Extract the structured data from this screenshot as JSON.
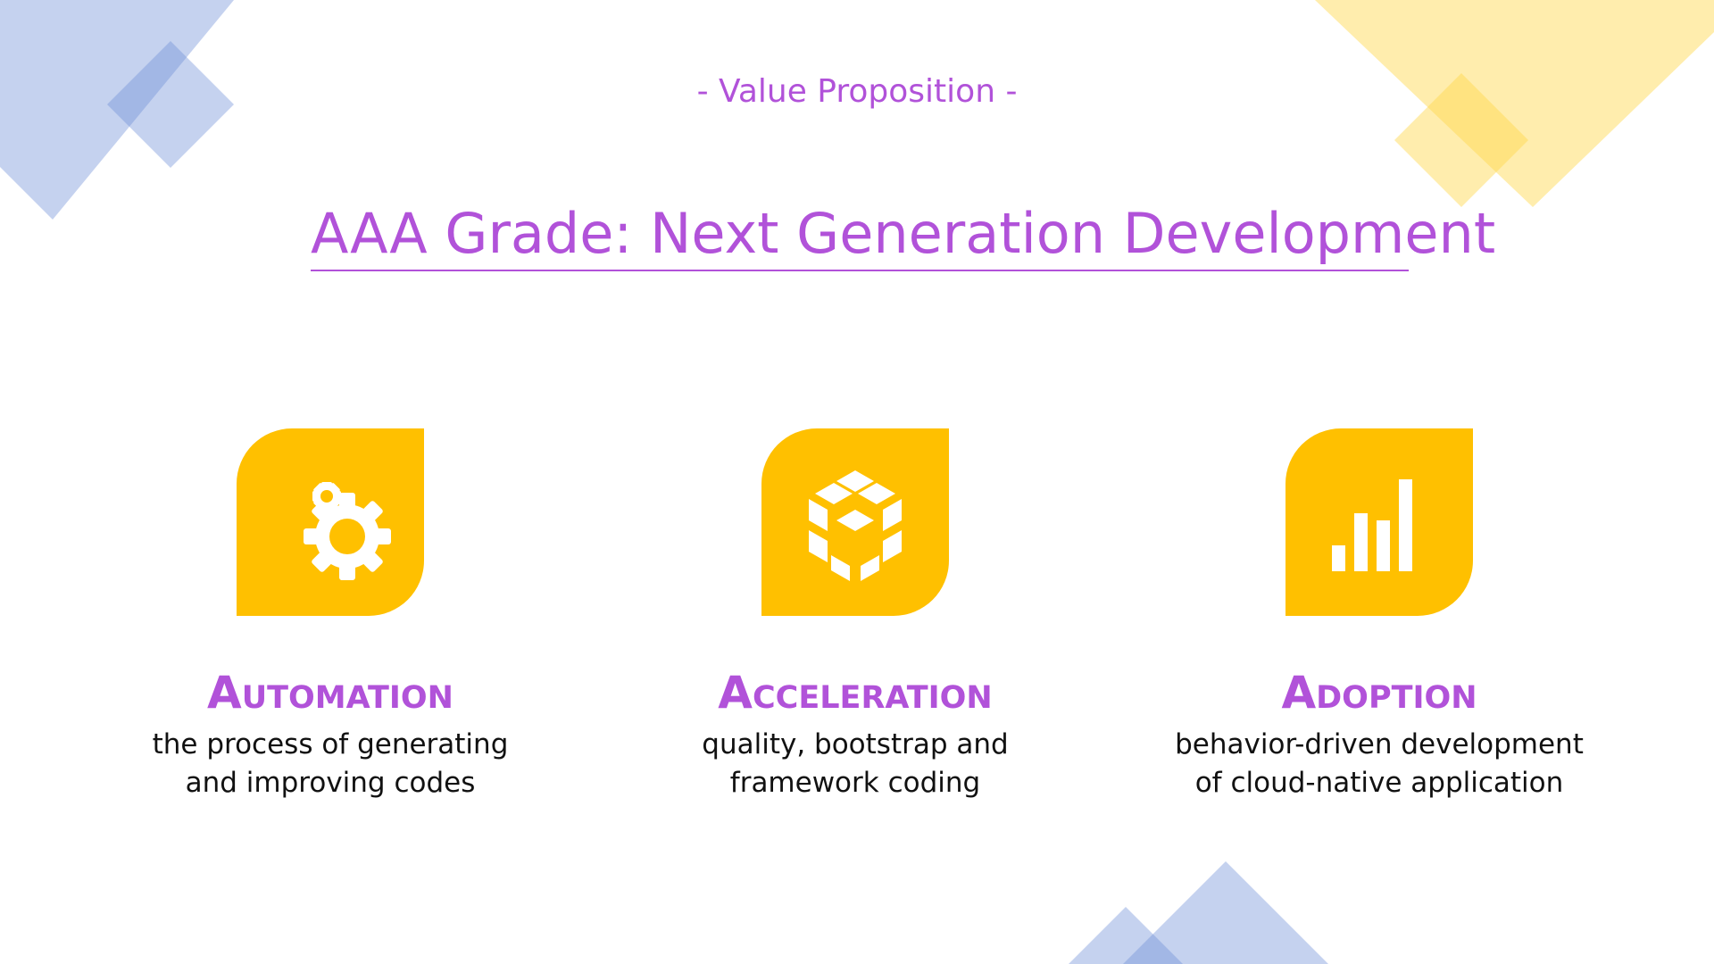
{
  "slide": {
    "subtitle": "- Value Proposition -",
    "title": "AAA Grade: Next Generation Development"
  },
  "colors": {
    "accent": "#b152d9",
    "tile": "#ffc000",
    "decor_blue": "#6f8fd6",
    "decor_yellow": "#ffd84a",
    "text": "#111111",
    "background": "#ffffff"
  },
  "features": [
    {
      "icon": "gears-icon",
      "heading": "Automation",
      "description_line1": "the process of generating",
      "description_line2": "and improving codes"
    },
    {
      "icon": "cube-icon",
      "heading": "Acceleration",
      "description_line1": "quality, bootstrap and",
      "description_line2": "framework coding"
    },
    {
      "icon": "bar-chart-icon",
      "heading": "Adoption",
      "description_line1": "behavior-driven development",
      "description_line2": "of cloud-native application"
    }
  ]
}
